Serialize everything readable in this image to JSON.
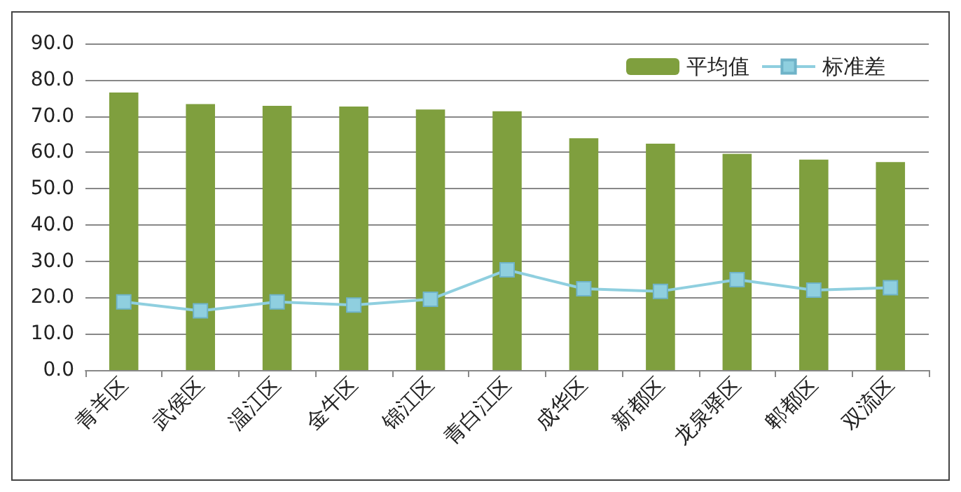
{
  "chart_data": {
    "type": "bar",
    "categories": [
      "青羊区",
      "武侯区",
      "温江区",
      "金牛区",
      "锦江区",
      "青白江区",
      "成华区",
      "新都区",
      "龙泉驿区",
      "郫都区",
      "双流区"
    ],
    "series": [
      {
        "name": "平均值",
        "color": "#7f9f3e",
        "values": [
          76.5,
          73.3,
          72.8,
          72.6,
          71.8,
          71.3,
          63.9,
          62.4,
          59.6,
          58.0,
          57.3
        ]
      },
      {
        "name": "标准差",
        "type": "line",
        "color": "#8fcfdf",
        "marker": "square",
        "values": [
          18.8,
          16.3,
          18.8,
          17.9,
          19.5,
          27.6,
          22.4,
          21.7,
          24.9,
          22.0,
          22.7
        ]
      }
    ],
    "ylim": [
      0,
      90
    ],
    "yticks": [
      {
        "value": 0,
        "label": "0.0"
      },
      {
        "value": 10,
        "label": "10.0"
      },
      {
        "value": 20,
        "label": "20.0"
      },
      {
        "value": 30,
        "label": "30.0"
      },
      {
        "value": 40,
        "label": "40.0"
      },
      {
        "value": 50,
        "label": "50.0"
      },
      {
        "value": 60,
        "label": "60.0"
      },
      {
        "value": 70,
        "label": "70.0"
      },
      {
        "value": 80,
        "label": "80.0"
      },
      {
        "value": 90,
        "label": "90.0"
      }
    ],
    "grid": "y",
    "legend": "top right"
  }
}
